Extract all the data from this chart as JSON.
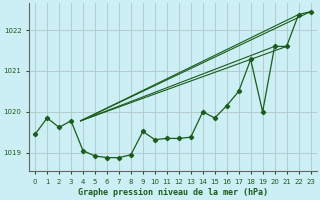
{
  "title": "Graphe pression niveau de la mer (hPa)",
  "bg_color": "#cceef5",
  "plot_bg_color": "#cceef5",
  "line_color": "#1a5c1a",
  "grid_color": "#b0c8c8",
  "xlim": [
    -0.5,
    23.5
  ],
  "ylim": [
    1018.55,
    1022.65
  ],
  "yticks": [
    1019,
    1020,
    1021,
    1022
  ],
  "xtick_labels": [
    "0",
    "1",
    "2",
    "3",
    "4",
    "5",
    "6",
    "7",
    "8",
    "9",
    "10",
    "11",
    "12",
    "13",
    "14",
    "15",
    "16",
    "17",
    "18",
    "19",
    "20",
    "21",
    "22",
    "23"
  ],
  "main_x": [
    0,
    1,
    2,
    3,
    4,
    5,
    6,
    7,
    8,
    9,
    10,
    11,
    12,
    13,
    14,
    15,
    16,
    17,
    18,
    19,
    20,
    21,
    22,
    23
  ],
  "main_y": [
    1019.45,
    1019.85,
    1019.62,
    1019.78,
    1019.05,
    1018.92,
    1018.88,
    1018.88,
    1018.95,
    1019.52,
    1019.32,
    1019.35,
    1019.35,
    1019.38,
    1020.0,
    1019.85,
    1020.15,
    1020.5,
    1021.28,
    1020.0,
    1021.6,
    1021.6,
    1022.38,
    1022.45
  ],
  "diag_lines": [
    {
      "x": [
        3.8,
        23
      ],
      "y": [
        1019.78,
        1022.45
      ]
    },
    {
      "x": [
        3.8,
        22
      ],
      "y": [
        1019.78,
        1022.38
      ]
    },
    {
      "x": [
        3.8,
        21
      ],
      "y": [
        1019.78,
        1021.6
      ]
    },
    {
      "x": [
        3.8,
        20
      ],
      "y": [
        1019.78,
        1021.6
      ]
    }
  ]
}
